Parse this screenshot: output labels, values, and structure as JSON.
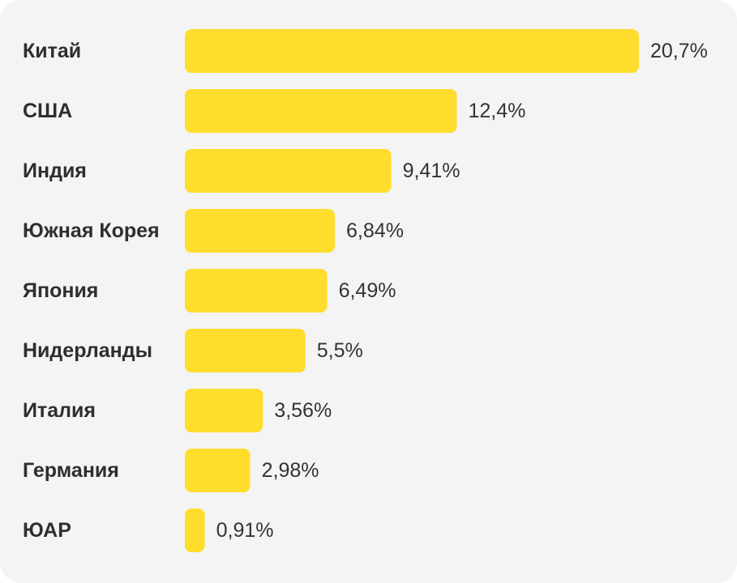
{
  "chart_data": {
    "type": "bar",
    "orientation": "horizontal",
    "categories": [
      "Китай",
      "США",
      "Индия",
      "Южная Корея",
      "Япония",
      "Нидерланды",
      "Италия",
      "Германия",
      "ЮАР"
    ],
    "values": [
      20.7,
      12.4,
      9.41,
      6.84,
      6.49,
      5.5,
      3.56,
      2.98,
      0.91
    ],
    "value_labels": [
      "20,7%",
      "12,4%",
      "9,41%",
      "6,84%",
      "6,49%",
      "5,5%",
      "3,56%",
      "2,98%",
      "0,91%"
    ],
    "bar_color": "#FFDD2D",
    "background_color": "#F4F4F4",
    "xlim": [
      0,
      20.7
    ],
    "grid": false,
    "title": "",
    "xlabel": "",
    "ylabel": ""
  }
}
